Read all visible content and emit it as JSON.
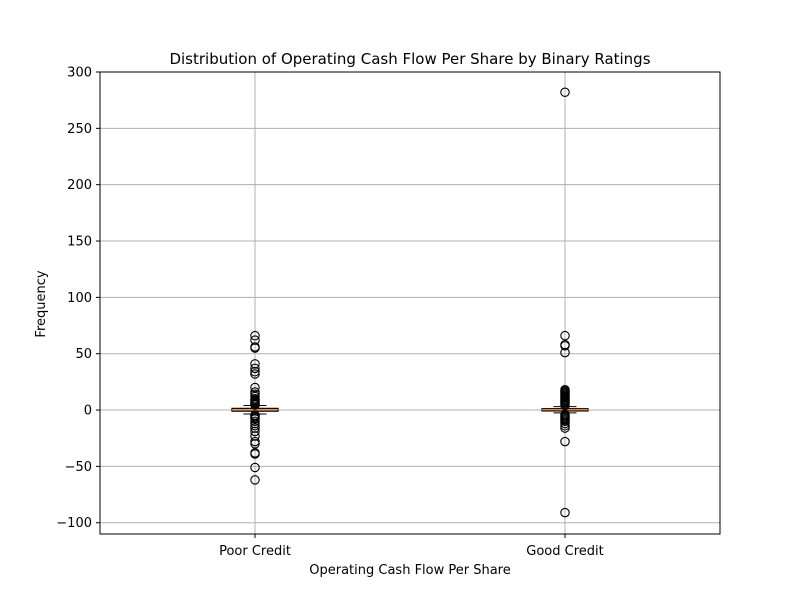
{
  "chart_data": {
    "type": "box",
    "title": "Distribution of Operating Cash Flow Per Share by Binary Ratings",
    "xlabel": "Operating Cash Flow Per Share",
    "ylabel": "Frequency",
    "ylim": [
      -110,
      300
    ],
    "yticks": [
      300,
      250,
      200,
      150,
      100,
      50,
      0,
      -50,
      -100
    ],
    "ytick_labels": [
      "300",
      "250",
      "200",
      "150",
      "100",
      "50",
      "0",
      "−50",
      "−100"
    ],
    "grid": true,
    "categories": [
      "Poor Credit",
      "Good Credit"
    ],
    "boxes": [
      {
        "category": "Poor Credit",
        "whisker_low": -3.5,
        "q1": -1.0,
        "median": 0.3,
        "q3": 1.5,
        "whisker_high": 4.0,
        "outliers": [
          66,
          62,
          56,
          55,
          41,
          37,
          34,
          32,
          20,
          16,
          14,
          12,
          10,
          9,
          8,
          7,
          6,
          5.5,
          5,
          4.5,
          -4.5,
          -5,
          -6,
          -7,
          -8,
          -10,
          -12,
          -14,
          -16,
          -19,
          -23,
          -28,
          -30,
          -38,
          -39,
          -51,
          -62
        ]
      },
      {
        "category": "Good Credit",
        "whisker_low": -2.5,
        "q1": -0.8,
        "median": 0.4,
        "q3": 1.2,
        "whisker_high": 3.0,
        "outliers": [
          282,
          66,
          58,
          57,
          51,
          18,
          17,
          16,
          15,
          14,
          13,
          12,
          11,
          10,
          9,
          8,
          7,
          6,
          5,
          4,
          -4,
          -5,
          -6,
          -7,
          -8,
          -9,
          -10,
          -12,
          -14,
          -16,
          -28,
          -91
        ]
      }
    ],
    "colors": {
      "box": "#000000",
      "median": "#ff7f0e",
      "grid": "#b0b0b0",
      "outlier_edge": "#000000"
    }
  }
}
